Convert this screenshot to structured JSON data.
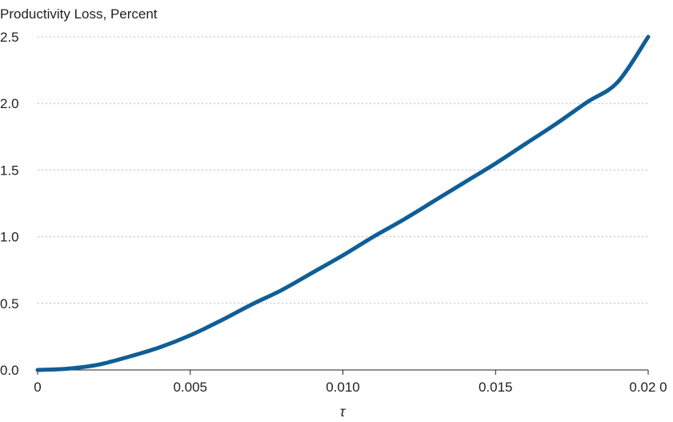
{
  "chart_data": {
    "type": "line",
    "title": "",
    "ylabel": "Productivity Loss, Percent",
    "xlabel": "τ",
    "xlim": [
      0,
      0.02
    ],
    "ylim": [
      0,
      2.5
    ],
    "x_ticks": [
      0,
      0.005,
      0.01,
      0.015,
      0.02
    ],
    "x_tick_labels": [
      "0",
      "0.005",
      "0.010",
      "0.015",
      "0.02 0"
    ],
    "y_ticks": [
      0,
      0.5,
      1.0,
      1.5,
      2.0,
      2.5
    ],
    "y_tick_labels": [
      "0.0",
      "0.5",
      "1.0",
      "1.5",
      "2.0",
      "2.5"
    ],
    "grid": true,
    "grid_axis": "y",
    "legend": "none",
    "series": [
      {
        "color": "#0f5e96",
        "x": [
          0,
          0.001,
          0.002,
          0.003,
          0.004,
          0.005,
          0.006,
          0.007,
          0.008,
          0.009,
          0.01,
          0.011,
          0.012,
          0.013,
          0.014,
          0.015,
          0.016,
          0.017,
          0.018,
          0.019,
          0.02
        ],
        "y": [
          0.0,
          0.01,
          0.04,
          0.1,
          0.17,
          0.26,
          0.37,
          0.49,
          0.6,
          0.73,
          0.86,
          1.0,
          1.13,
          1.27,
          1.41,
          1.55,
          1.7,
          1.85,
          2.01,
          2.16,
          2.5
        ]
      }
    ]
  }
}
